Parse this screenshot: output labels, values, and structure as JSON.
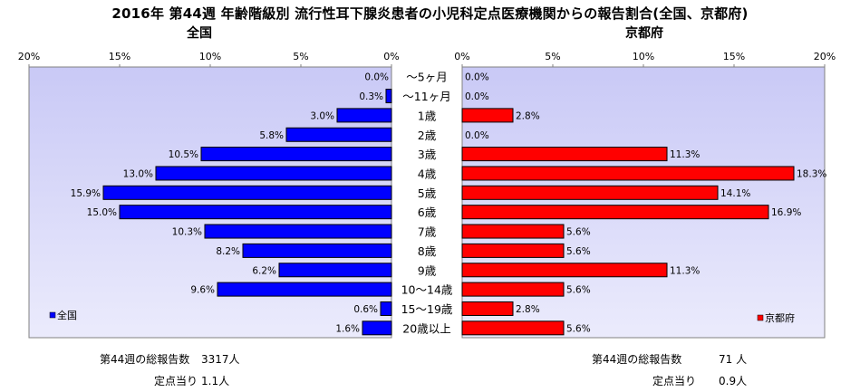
{
  "title": "2016年 第44週 年齢階級別 流行性耳下腺炎患者の小児科定点医療機関からの報告割合(全国、京都府)",
  "chart_data": {
    "type": "bar",
    "categories": [
      "～5ヶ月",
      "～11ヶ月",
      "1歳",
      "2歳",
      "3歳",
      "4歳",
      "5歳",
      "6歳",
      "7歳",
      "8歳",
      "9歳",
      "10～14歳",
      "15～19歳",
      "20歳以上"
    ],
    "xlim": [
      0,
      20
    ],
    "x_ticks": [
      "20%",
      "15%",
      "10%",
      "5%",
      "0%"
    ],
    "x_ticks_right": [
      "0%",
      "5%",
      "10%",
      "15%",
      "20%"
    ],
    "series": [
      {
        "name": "全国",
        "panel_title": "全国",
        "color": "#0000ff",
        "values": [
          0.0,
          0.3,
          3.0,
          5.8,
          10.5,
          13.0,
          15.9,
          15.0,
          10.3,
          8.2,
          6.2,
          9.6,
          0.6,
          1.6
        ],
        "labels": [
          "0.0%",
          "0.3%",
          "3.0%",
          "5.8%",
          "10.5%",
          "13.0%",
          "15.9%",
          "15.0%",
          "10.3%",
          "8.2%",
          "6.2%",
          "9.6%",
          "0.6%",
          "1.6%"
        ]
      },
      {
        "name": "京都府",
        "panel_title": "京都府",
        "color": "#ff0000",
        "values": [
          0.0,
          0.0,
          2.8,
          0.0,
          11.3,
          18.3,
          14.1,
          16.9,
          5.6,
          5.6,
          11.3,
          5.6,
          2.8,
          5.6
        ],
        "labels": [
          "0.0%",
          "0.0%",
          "2.8%",
          "0.0%",
          "11.3%",
          "18.3%",
          "14.1%",
          "16.9%",
          "5.6%",
          "5.6%",
          "11.3%",
          "5.6%",
          "2.8%",
          "5.6%"
        ]
      }
    ]
  },
  "footer": {
    "left_total_label": "第44週の総報告数",
    "left_total_value": "3317人",
    "left_sentinel_label": "定点当り",
    "left_sentinel_value": "1.1人",
    "right_total_label": "第44週の総報告数",
    "right_total_value": "71 人",
    "right_sentinel_label": "定点当り",
    "right_sentinel_value": "0.9人"
  }
}
